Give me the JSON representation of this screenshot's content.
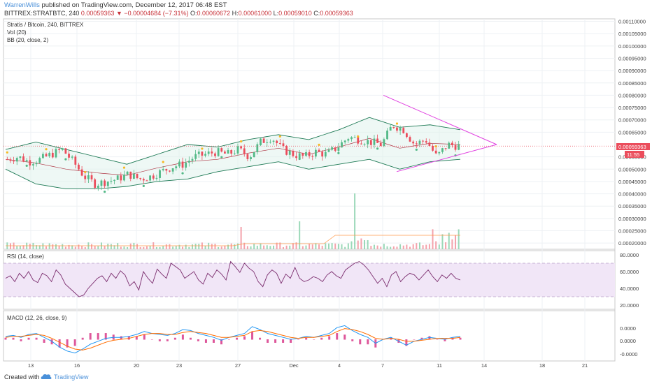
{
  "header": {
    "author": "WarrenWills",
    "published": " published on TradingView.com, December 12, 2017 06:48 EST",
    "symbol": "BITTREX:STRATBTC, 240",
    "last": "0.00059363",
    "change": "−0.00004684 (−7.31%)",
    "o_label": "O:",
    "o_val": "0.00060672",
    "h_label": "H:",
    "h_val": "0.00061000",
    "l_label": "L:",
    "l_val": "0.00059010",
    "c_label": "C:",
    "c_val": "0.00059363"
  },
  "panes": {
    "main_title": "Stratis / Bitcoin, 240, BITTREX",
    "vol_title": "Vol (20)",
    "bb_title": "BB (20, close, 2)",
    "rsi_title": "RSI (14, close)",
    "macd_title": "MACD (12, 26, close, 9)"
  },
  "price_tag": {
    "value": "0.00059363",
    "countdown": "11:55"
  },
  "footer": {
    "created": "Created with",
    "brand": "TradingView"
  },
  "colors": {
    "up": "#53b987",
    "down": "#eb4d5c",
    "bb": "#1e7a55",
    "pattern": "#e040e0",
    "rsi": "#7b2d6e",
    "macd": "#2196f3",
    "signal": "#ff6d00"
  },
  "chart_data": [
    {
      "type": "candlestick",
      "title": "Stratis / Bitcoin, 240, BITTREX",
      "x_ticks": [
        "13",
        "16",
        "20",
        "23",
        "27",
        "Dec",
        "4",
        "7",
        "11",
        "14",
        "18",
        "21"
      ],
      "y_ticks": [
        "0.00110000",
        "0.00105000",
        "0.00100000",
        "0.00095000",
        "0.00090000",
        "0.00085000",
        "0.00080000",
        "0.00075000",
        "0.00070000",
        "0.00065000",
        "0.00059363",
        "0.00055000",
        "0.00050000",
        "0.00045000",
        "0.00040000",
        "0.00035000",
        "0.00030000",
        "0.00025000",
        "0.00020000"
      ],
      "ylim": [
        0.000175,
        0.00111
      ],
      "close_approx": [
        0.00054,
        0.00055,
        0.00053,
        0.00054,
        0.00056,
        0.00058,
        0.00053,
        0.00047,
        0.00044,
        0.00045,
        0.00046,
        0.00048,
        0.00046,
        0.00047,
        0.00049,
        0.00051,
        0.00052,
        0.00055,
        0.00056,
        0.00057,
        0.00056,
        0.00058,
        0.00055,
        0.00061,
        0.00063,
        0.00058,
        0.00056,
        0.00055,
        0.00057,
        0.00056,
        0.00059,
        0.00063,
        0.00062,
        0.00061,
        0.0006,
        0.00068,
        0.00066,
        0.0006,
        0.00062,
        0.00055,
        0.0006,
        0.00059363
      ],
      "bollinger": {
        "upper_approx": [
          0.00058,
          0.00061,
          0.00058,
          0.00055,
          0.00052,
          0.00056,
          0.0006,
          0.00059,
          0.00062,
          0.00064,
          0.00062,
          0.00066,
          0.00071,
          0.00067,
          0.00068,
          0.00066
        ],
        "lower_approx": [
          0.0005,
          0.00044,
          0.00042,
          0.00042,
          0.00043,
          0.00045,
          0.00046,
          0.00049,
          0.00051,
          0.00053,
          0.0005,
          0.00052,
          0.00054,
          0.0005,
          0.00053,
          0.00054
        ]
      },
      "triangle": {
        "upper_start": 0.0008,
        "lower_start": 0.00049,
        "apex": 0.0006
      }
    },
    {
      "type": "line",
      "title": "RSI (14, close)",
      "y_ticks": [
        "80.0000",
        "60.0000",
        "40.0000",
        "20.0000"
      ],
      "ylim": [
        15,
        85
      ],
      "band": [
        30,
        70
      ],
      "values": [
        52,
        55,
        48,
        58,
        52,
        60,
        50,
        47,
        58,
        55,
        48,
        62,
        56,
        45,
        40,
        35,
        30,
        32,
        40,
        46,
        52,
        55,
        48,
        58,
        52,
        61,
        56,
        43,
        48,
        38,
        60,
        52,
        46,
        63,
        57,
        52,
        70,
        66,
        62,
        52,
        56,
        60,
        50,
        45,
        58,
        53,
        62,
        57,
        50,
        72,
        66,
        59,
        70,
        64,
        60,
        48,
        42,
        56,
        62,
        58,
        46,
        57,
        52,
        65,
        52,
        48,
        50,
        54,
        52,
        48,
        56,
        60,
        55,
        52,
        62,
        66,
        70,
        72,
        68,
        62,
        54,
        46,
        52,
        42,
        56,
        60,
        48,
        54,
        58,
        56,
        50,
        56,
        62,
        54,
        48,
        56,
        52,
        58,
        52,
        50
      ]
    },
    {
      "type": "line",
      "title": "MACD (12, 26, close, 9)",
      "y_ticks": [
        "0.0000",
        "0.0000",
        "-0.0000"
      ],
      "series": [
        {
          "values": [
            0.3,
            0.4,
            0.2,
            0.5,
            0.6,
            0.2,
            -0.2,
            -0.8,
            -1.2,
            -1.4,
            -1.0,
            -0.5,
            -0.2,
            0.1,
            0.2,
            0.2,
            0.3,
            0.5,
            0.8,
            0.6,
            0.5,
            0.4,
            0.6,
            1.0,
            0.9,
            0.6,
            0.4,
            0.2,
            -0.1,
            0.2,
            0.4,
            0.6,
            1.3,
            1.0,
            0.6,
            0.4,
            0.2,
            0.0,
            0.1,
            0.3,
            0.2,
            0.4,
            0.6,
            1.2,
            1.4,
            0.9,
            0.5,
            0.2,
            -0.4,
            0.0,
            0.2,
            -0.2,
            -0.6,
            -0.2,
            0.0,
            0.2,
            0.1,
            0.0,
            0.2,
            0.3
          ]
        },
        {
          "values": [
            0.2,
            0.3,
            0.3,
            0.4,
            0.5,
            0.4,
            0.1,
            -0.3,
            -0.7,
            -1.0,
            -1.1,
            -0.9,
            -0.6,
            -0.3,
            -0.1,
            0.0,
            0.1,
            0.3,
            0.5,
            0.6,
            0.6,
            0.5,
            0.5,
            0.7,
            0.8,
            0.7,
            0.6,
            0.4,
            0.2,
            0.2,
            0.3,
            0.4,
            0.8,
            0.9,
            0.8,
            0.6,
            0.4,
            0.2,
            0.1,
            0.2,
            0.2,
            0.3,
            0.4,
            0.8,
            1.1,
            1.0,
            0.8,
            0.5,
            0.1,
            0.0,
            0.1,
            0.0,
            -0.2,
            -0.2,
            -0.1,
            0.0,
            0.1,
            0.1,
            0.1,
            0.2
          ]
        }
      ]
    }
  ]
}
